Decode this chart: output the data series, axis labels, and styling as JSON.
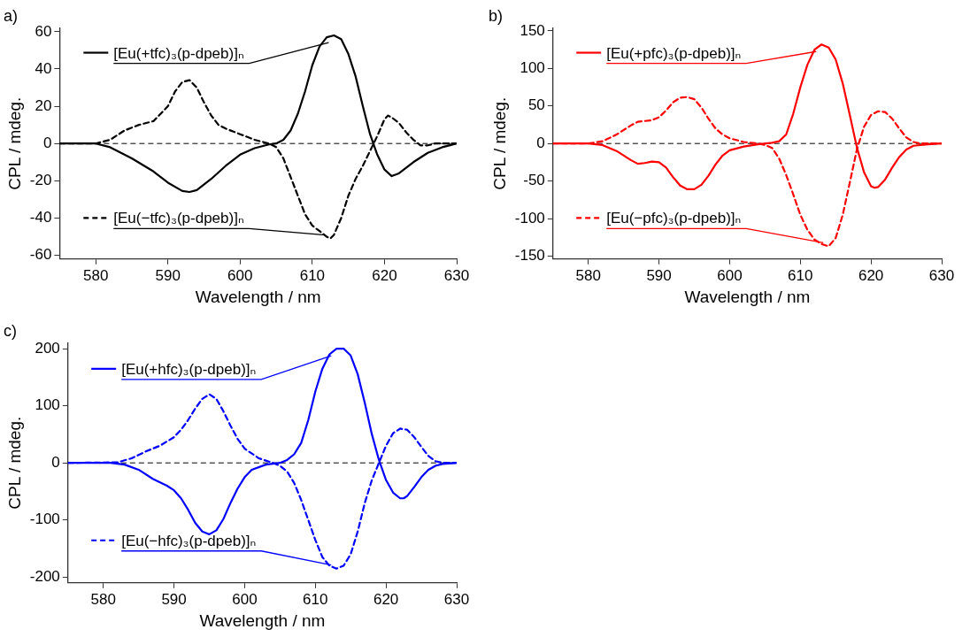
{
  "chart_data": [
    {
      "type": "line",
      "title": "a)",
      "xlabel": "Wavelength / nm",
      "ylabel": "CPL / mdeg.",
      "xlim": [
        575,
        630
      ],
      "xticks": [
        580,
        590,
        600,
        610,
        620,
        630
      ],
      "ylim": [
        -62,
        62
      ],
      "yticks": [
        -60,
        -40,
        -20,
        0,
        20,
        40,
        60
      ],
      "grid": false,
      "legend": "left",
      "marker": "none",
      "ref_lines": [
        {
          "axis": "y",
          "value": 0,
          "color": "#000000",
          "line_style": "dashed"
        }
      ],
      "series": [
        {
          "name": "[Eu(+tfc)₃(p-dpeb)]ₙ",
          "color": "#000000",
          "line_style": "solid",
          "x": [
            575,
            580,
            582,
            585,
            588,
            590,
            592,
            593,
            594,
            596,
            598,
            600,
            602,
            604,
            605,
            606,
            607,
            608,
            609,
            610,
            611,
            612,
            613,
            614,
            615,
            616,
            617,
            618,
            619,
            620,
            621,
            622,
            624,
            626,
            628,
            630
          ],
          "values": [
            0,
            0,
            -2,
            -8,
            -15,
            -21,
            -25.5,
            -26,
            -25,
            -19,
            -12,
            -6,
            -2.5,
            -0.5,
            0,
            2,
            7,
            16,
            28,
            42,
            52,
            57,
            58,
            56,
            48,
            36,
            20,
            5,
            -6,
            -14,
            -17.5,
            -16,
            -10,
            -5,
            -2,
            0
          ]
        },
        {
          "name": "[Eu(−tfc)₃(p-dpeb)]ₙ",
          "color": "#000000",
          "line_style": "dashed",
          "x": [
            575,
            580,
            582,
            584,
            586,
            588,
            590,
            591,
            592,
            593,
            594,
            595,
            596,
            597,
            598,
            600,
            602,
            604,
            605,
            606,
            607,
            608,
            609,
            610,
            611,
            612,
            612.5,
            613,
            614,
            615,
            616,
            617,
            618,
            619,
            620,
            620.5,
            621,
            622,
            623,
            624,
            625,
            626,
            627,
            630
          ],
          "values": [
            0,
            0,
            2,
            7,
            10,
            12,
            20,
            28,
            33,
            34,
            30,
            22,
            15,
            10,
            8,
            5,
            2,
            0,
            -2,
            -8,
            -18,
            -28,
            -38,
            -44,
            -47,
            -50,
            -51,
            -49,
            -40,
            -28,
            -19,
            -12,
            -4,
            4,
            13,
            15,
            14,
            11,
            6,
            2,
            -1,
            -1,
            0,
            0
          ]
        }
      ]
    },
    {
      "type": "line",
      "title": "b)",
      "xlabel": "Wavelength / nm",
      "ylabel": "CPL / mdeg.",
      "xlim": [
        575,
        630
      ],
      "xticks": [
        580,
        590,
        600,
        610,
        620,
        630
      ],
      "ylim": [
        -154,
        154
      ],
      "yticks": [
        -150,
        -100,
        -50,
        0,
        50,
        100,
        150
      ],
      "grid": false,
      "legend": "left",
      "marker": "none",
      "ref_lines": [
        {
          "axis": "y",
          "value": 0,
          "color": "#000000",
          "line_style": "dashed"
        }
      ],
      "series": [
        {
          "name": "[Eu(+pfc)₃(p-dpeb)]ₙ",
          "color": "#ff0000",
          "line_style": "solid",
          "x": [
            575,
            580,
            582,
            584,
            586,
            587,
            588,
            589,
            590,
            591,
            592,
            593,
            594,
            595,
            596,
            597,
            598,
            599,
            600,
            602,
            604,
            606,
            607,
            608,
            609,
            610,
            611,
            612,
            613,
            614,
            615,
            616,
            617,
            618,
            619,
            620,
            620.5,
            621,
            622,
            623,
            624,
            625,
            626,
            628,
            630
          ],
          "values": [
            0,
            0,
            -2,
            -10,
            -22,
            -27,
            -26,
            -24,
            -25,
            -32,
            -45,
            -56,
            -61,
            -61,
            -55,
            -43,
            -28,
            -16,
            -9,
            -4,
            -1,
            1,
            3,
            12,
            40,
            75,
            105,
            125,
            132,
            128,
            112,
            80,
            38,
            -5,
            -38,
            -57,
            -59,
            -58,
            -48,
            -32,
            -18,
            -8,
            -3,
            -1,
            0
          ]
        },
        {
          "name": "[Eu(−pfc)₃(p-dpeb)]ₙ",
          "color": "#ff0000",
          "line_style": "dashed",
          "x": [
            575,
            580,
            582,
            584,
            586,
            587,
            588,
            589,
            590,
            591,
            592,
            593,
            594,
            595,
            596,
            597,
            598,
            599,
            600,
            602,
            604,
            605,
            606,
            607,
            608,
            609,
            610,
            611,
            612,
            613,
            614,
            615,
            616,
            617,
            618,
            619,
            620,
            621,
            622,
            623,
            624,
            625,
            626,
            627,
            630
          ],
          "values": [
            0,
            0,
            3,
            12,
            24,
            29,
            30,
            31,
            35,
            44,
            55,
            61,
            62,
            59,
            48,
            33,
            20,
            12,
            7,
            2,
            0,
            -2,
            -6,
            -20,
            -42,
            -68,
            -95,
            -115,
            -128,
            -134,
            -137,
            -126,
            -95,
            -52,
            -8,
            22,
            38,
            43,
            42,
            33,
            20,
            8,
            2,
            0,
            0
          ]
        }
      ]
    },
    {
      "type": "line",
      "title": "c)",
      "xlabel": "Wavelength / nm",
      "ylabel": "CPL / mdeg.",
      "xlim": [
        575,
        630
      ],
      "xticks": [
        580,
        590,
        600,
        610,
        620,
        630
      ],
      "ylim": [
        -210,
        210
      ],
      "yticks": [
        -200,
        -100,
        0,
        100,
        200
      ],
      "grid": false,
      "legend": "left",
      "marker": "none",
      "ref_lines": [
        {
          "axis": "y",
          "value": 0,
          "color": "#000000",
          "line_style": "dashed"
        }
      ],
      "series": [
        {
          "name": "[Eu(+hfc)₃(p-dpeb)]ₙ",
          "color": "#0000ff",
          "line_style": "solid",
          "x": [
            575,
            581,
            583,
            585,
            587,
            589,
            590,
            591,
            592,
            593,
            594,
            595,
            596,
            597,
            598,
            599,
            600,
            601,
            603,
            605,
            606,
            607,
            608,
            609,
            610,
            611,
            612,
            613,
            614,
            615,
            616,
            617,
            618,
            619,
            620,
            621,
            622,
            622.5,
            623,
            624,
            625,
            626,
            627,
            628,
            630
          ],
          "values": [
            0,
            0,
            -3,
            -12,
            -28,
            -40,
            -48,
            -62,
            -82,
            -105,
            -120,
            -125,
            -118,
            -98,
            -70,
            -45,
            -25,
            -12,
            -3,
            0,
            5,
            15,
            35,
            75,
            125,
            165,
            190,
            200,
            200,
            188,
            155,
            105,
            50,
            5,
            -30,
            -52,
            -62,
            -62,
            -58,
            -42,
            -25,
            -12,
            -5,
            -2,
            0
          ]
        },
        {
          "name": "[Eu(−hfc)₃(p-dpeb)]ₙ",
          "color": "#0000ff",
          "line_style": "dashed",
          "x": [
            575,
            582,
            584,
            586,
            588,
            590,
            591,
            592,
            593,
            594,
            595,
            596,
            597,
            598,
            599,
            600,
            602,
            604,
            605,
            606,
            607,
            608,
            609,
            610,
            611,
            612,
            613,
            614,
            615,
            616,
            617,
            618,
            619,
            620,
            621,
            622,
            623,
            624,
            625,
            626,
            627,
            628,
            630
          ],
          "values": [
            0,
            1,
            8,
            20,
            30,
            45,
            58,
            75,
            95,
            112,
            120,
            112,
            90,
            65,
            42,
            25,
            8,
            0,
            -5,
            -15,
            -35,
            -65,
            -100,
            -135,
            -165,
            -180,
            -185,
            -180,
            -160,
            -120,
            -70,
            -30,
            0,
            30,
            52,
            60,
            58,
            45,
            28,
            12,
            3,
            0,
            0
          ]
        }
      ]
    }
  ]
}
